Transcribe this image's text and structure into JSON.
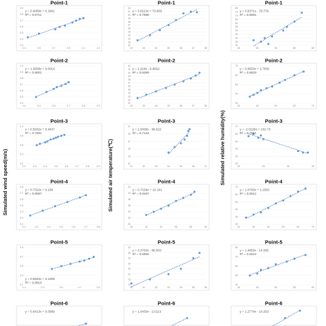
{
  "columns": [
    {
      "id": "wind",
      "ylabel": "Simulated wind speed(m/s)"
    },
    {
      "id": "temp",
      "ylabel": "Simulated air temperature(℃)"
    },
    {
      "id": "hum",
      "ylabel": "Simulated relative humidity(%)"
    }
  ],
  "colors": {
    "point": "#5b9bd5",
    "trendline": "#4472c4",
    "frame": "#d4d4d4",
    "grid": "#ececec"
  },
  "chart_data": [
    {
      "type": "scatter",
      "title": "Point-1",
      "col": 0,
      "row": 0,
      "equation": "y = 0.4089x + 0.2961",
      "r2": "R² = 0.8711",
      "eq_pos": "top-left",
      "xlim": [
        0.3,
        1.3
      ],
      "ylim": [
        0.3,
        0.9
      ],
      "xticks": [
        "0.3",
        "0.5",
        "0.7",
        "0.9",
        "1.1",
        "1.3"
      ],
      "yticks": [
        "0.3",
        "0.4",
        "0.5",
        "0.6",
        "0.7",
        "0.8",
        "0.9"
      ],
      "x": [
        0.35,
        0.5,
        0.72,
        0.78,
        0.85,
        0.95,
        1.0,
        1.05,
        1.1
      ],
      "y": [
        0.43,
        0.49,
        0.56,
        0.6,
        0.62,
        0.67,
        0.7,
        0.73,
        0.74
      ]
    },
    {
      "type": "scatter",
      "title": "Point-1",
      "col": 1,
      "row": 0,
      "equation": "y = 3.0113x + 73.083",
      "r2": "R² = 0.7688",
      "eq_pos": "top-left",
      "xlim": [
        32,
        38
      ],
      "ylim": [
        31,
        42
      ],
      "xticks": [
        "32",
        "33",
        "34",
        "35",
        "36",
        "37",
        "38"
      ],
      "yticks": [
        "31",
        "32",
        "33",
        "34",
        "35",
        "36",
        "37",
        "38",
        "39",
        "40",
        "41",
        "42"
      ],
      "x": [
        32.5,
        33.5,
        34.3,
        35.0,
        35.6,
        36.2,
        36.8,
        37.3
      ],
      "y": [
        32.5,
        34.0,
        35.5,
        37.0,
        38.5,
        40.5,
        41.0,
        40.8
      ]
    },
    {
      "type": "scatter",
      "title": "Point-1",
      "col": 2,
      "row": 0,
      "equation": "y = 3.6371x - 78.776",
      "r2": "R² = 0.6664",
      "eq_pos": "top-left",
      "xlim": [
        45,
        65
      ],
      "ylim": [
        30,
        80
      ],
      "xticks": [
        "45",
        "50",
        "55",
        "60",
        "65"
      ],
      "yticks": [
        "30",
        "35",
        "40",
        "45",
        "50",
        "55",
        "60",
        "65",
        "70",
        "75",
        "80"
      ],
      "x": [
        49,
        51,
        52,
        53,
        54,
        57,
        58,
        60,
        62
      ],
      "y": [
        37,
        35,
        40,
        32,
        42,
        50,
        55,
        62,
        74
      ]
    },
    {
      "type": "scatter",
      "title": "Point-2",
      "col": 0,
      "row": 1,
      "equation": "y = 1.0508x + 0.0014",
      "r2": "R² = 0.9001",
      "eq_pos": "top-left",
      "xlim": [
        0.4,
        0.9
      ],
      "ylim": [
        0.4,
        1.0
      ],
      "xticks": [
        "0.4",
        "0.5",
        "0.6",
        "0.7",
        "0.8",
        "0.9"
      ],
      "yticks": [
        "0.4",
        "0.5",
        "0.6",
        "0.7",
        "0.8",
        "0.9",
        "1.0"
      ],
      "x": [
        0.48,
        0.55,
        0.6,
        0.62,
        0.65,
        0.68,
        0.7
      ],
      "y": [
        0.5,
        0.58,
        0.63,
        0.66,
        0.68,
        0.71,
        0.74
      ]
    },
    {
      "type": "scatter",
      "title": "Point-2",
      "col": 1,
      "row": 1,
      "equation": "y = 1.218x - 6.9822",
      "r2": "R² = 0.9389",
      "eq_pos": "top-left",
      "xlim": [
        32,
        38
      ],
      "ylim": [
        31,
        42
      ],
      "xticks": [
        "32",
        "33",
        "34",
        "35",
        "36",
        "37",
        "38"
      ],
      "yticks": [
        "31",
        "32",
        "33",
        "34",
        "35",
        "36",
        "37",
        "38",
        "39",
        "40",
        "41",
        "42"
      ],
      "x": [
        32.5,
        33.2,
        34.0,
        34.8,
        35.5,
        36.2,
        36.8,
        37.2,
        37.5
      ],
      "y": [
        32.5,
        33.5,
        34.5,
        35.5,
        36.5,
        37.5,
        38.3,
        39.2,
        40.0
      ]
    },
    {
      "type": "scatter",
      "title": "Point-2",
      "col": 2,
      "row": 1,
      "equation": "y = 0.9553x + 2.7832",
      "r2": "R² = 0.8829",
      "eq_pos": "top-left",
      "xlim": [
        30,
        70
      ],
      "ylim": [
        30,
        70
      ],
      "xticks": [
        "30",
        "40",
        "50",
        "60",
        "70"
      ],
      "yticks": [
        "30",
        "40",
        "50",
        "60",
        "70"
      ],
      "x": [
        36,
        38,
        40,
        42,
        45,
        48,
        52,
        55,
        60,
        65
      ],
      "y": [
        37,
        39,
        41,
        44,
        46,
        48,
        52,
        55,
        60,
        64
      ]
    },
    {
      "type": "scatter",
      "title": "Point-3",
      "col": 0,
      "row": 2,
      "equation": "y = 0.5932x + 0.6407",
      "r2": "R² = 0.7691",
      "eq_pos": "top-left",
      "xlim": [
        0.2,
        0.9
      ],
      "ylim": [
        0.2,
        1.0
      ],
      "xticks": [
        "0.2",
        "0.3",
        "0.4",
        "0.5",
        "0.6",
        "0.7",
        "0.8",
        "0.9"
      ],
      "yticks": [
        "0.2",
        "0.4",
        "0.6",
        "0.8",
        "1.0"
      ],
      "x": [
        0.32,
        0.35,
        0.4,
        0.42,
        0.45,
        0.48,
        0.5,
        0.52,
        0.55,
        0.58
      ],
      "y": [
        0.6,
        0.63,
        0.66,
        0.68,
        0.72,
        0.74,
        0.76,
        0.78,
        0.8,
        0.82
      ]
    },
    {
      "type": "scatter",
      "title": "Point-3",
      "col": 1,
      "row": 2,
      "equation": "y = 2.0009x - 98.622",
      "r2": "R² = 0.7144",
      "eq_pos": "top-left",
      "xlim": [
        31,
        37
      ],
      "ylim": [
        31,
        41
      ],
      "xticks": [
        "31",
        "32",
        "33",
        "34",
        "35",
        "36",
        "37"
      ],
      "yticks": [
        "31",
        "33",
        "35",
        "37",
        "39",
        "41"
      ],
      "x": [
        34.0,
        34.5,
        35.0,
        35.3,
        35.5,
        35.6,
        35.7
      ],
      "y": [
        34.0,
        35.5,
        36.5,
        37.5,
        38.5,
        39.8,
        40.3
      ]
    },
    {
      "type": "scatter",
      "title": "Point-3",
      "col": 2,
      "row": 2,
      "equation": "y = -2.0228x + 102.73",
      "r2": "R² = 0.7591",
      "eq_pos": "top-left",
      "xlim": [
        20,
        35
      ],
      "ylim": [
        20,
        70
      ],
      "xticks": [
        "20",
        "25",
        "30",
        "35"
      ],
      "yticks": [
        "20",
        "30",
        "40",
        "50",
        "60",
        "70"
      ],
      "x": [
        22,
        23,
        24,
        24.5,
        25,
        32,
        33,
        34
      ],
      "y": [
        57,
        60,
        55,
        58,
        53,
        37,
        35,
        35
      ]
    },
    {
      "type": "scatter",
      "title": "Point-4",
      "col": 0,
      "row": 3,
      "equation": "y = 0.7322x + 0.156",
      "r2": "R² = 0.8597",
      "eq_pos": "top-left",
      "xlim": [
        0.2,
        0.8
      ],
      "ylim": [
        0.2,
        0.8
      ],
      "xticks": [
        "0.2",
        "0.3",
        "0.4",
        "0.5",
        "0.6",
        "0.7",
        "0.8"
      ],
      "yticks": [
        "0.2",
        "0.3",
        "0.4",
        "0.5",
        "0.6",
        "0.7",
        "0.8"
      ],
      "x": [
        0.25,
        0.35,
        0.45,
        0.55,
        0.65,
        0.7
      ],
      "y": [
        0.34,
        0.42,
        0.49,
        0.56,
        0.63,
        0.67
      ]
    },
    {
      "type": "scatter",
      "title": "Point-4",
      "col": 1,
      "row": 3,
      "equation": "y = 0.7229x + 10.181",
      "r2": "R² = 0.9187",
      "eq_pos": "top-left",
      "xlim": [
        30,
        40
      ],
      "ylim": [
        30,
        42
      ],
      "xticks": [
        "30",
        "32",
        "34",
        "36",
        "38",
        "40"
      ],
      "yticks": [
        "30",
        "32",
        "34",
        "36",
        "38",
        "40",
        "42"
      ],
      "x": [
        32,
        33,
        34,
        35,
        36,
        37,
        38,
        38.5
      ],
      "y": [
        33,
        34,
        35,
        36,
        37.5,
        38.5,
        39.5,
        40.5
      ]
    },
    {
      "type": "scatter",
      "title": "Point-4",
      "col": 2,
      "row": 3,
      "equation": "y = 1.0793x + 1.1553",
      "r2": "R² = 0.8912",
      "eq_pos": "top-left",
      "xlim": [
        20,
        70
      ],
      "ylim": [
        20,
        70
      ],
      "xticks": [
        "20",
        "30",
        "40",
        "50",
        "60",
        "70"
      ],
      "yticks": [
        "20",
        "30",
        "40",
        "50",
        "60",
        "70"
      ],
      "x": [
        25,
        30,
        35,
        40,
        45,
        50,
        55,
        60,
        65
      ],
      "y": [
        29,
        33,
        36,
        42,
        48,
        52,
        58,
        64,
        68
      ]
    },
    {
      "type": "scatter",
      "title": "Point-5",
      "col": 0,
      "row": 4,
      "equation": "y = 0.5594x + 0.2305",
      "r2": "R² = 0.8819",
      "eq_pos": "bottom-left",
      "xlim": [
        0.1,
        0.9
      ],
      "ylim": [
        0.1,
        0.9
      ],
      "xticks": [
        "0.1",
        "0.3",
        "0.5",
        "0.7",
        "0.9"
      ],
      "yticks": [
        "0.1",
        "0.3",
        "0.5",
        "0.7",
        "0.9"
      ],
      "x": [
        0.4,
        0.5,
        0.6,
        0.7,
        0.75,
        0.8,
        0.85
      ],
      "y": [
        0.44,
        0.5,
        0.55,
        0.6,
        0.62,
        0.66,
        0.7
      ]
    },
    {
      "type": "scatter",
      "title": "Point-5",
      "col": 1,
      "row": 4,
      "equation": "y = 3.3763x - 88.003",
      "r2": "R² = 0.5906",
      "eq_pos": "top-left",
      "xlim": [
        30,
        36
      ],
      "ylim": [
        14,
        42
      ],
      "xticks": [
        "30",
        "31",
        "32",
        "33",
        "34",
        "35",
        "36"
      ],
      "yticks": [
        "14",
        "18",
        "22",
        "26",
        "30",
        "34",
        "38",
        "42"
      ],
      "x": [
        30,
        31.5,
        33,
        34,
        35,
        35.5
      ],
      "y": [
        15,
        18,
        22,
        26,
        34,
        38
      ]
    },
    {
      "type": "scatter",
      "title": "Point-5",
      "col": 2,
      "row": 4,
      "equation": "y = 1.4883x - 14.065",
      "r2": "R² = 0.5515",
      "eq_pos": "top-left",
      "xlim": [
        40,
        60
      ],
      "ylim": [
        40,
        80
      ],
      "xticks": [
        "40",
        "45",
        "50",
        "55",
        "60"
      ],
      "yticks": [
        "40",
        "50",
        "60",
        "70",
        "80"
      ],
      "x": [
        43,
        45,
        46,
        48,
        50,
        53,
        55,
        58
      ],
      "y": [
        50,
        52,
        56,
        58,
        62,
        65,
        68,
        72
      ]
    },
    {
      "type": "scatter",
      "title": "Point-6",
      "col": 0,
      "row": 5,
      "equation": "y = 0.6413x + 0.0989",
      "r2": "",
      "eq_pos": "top-left",
      "xlim": [
        0.2,
        0.8
      ],
      "ylim": [
        0.2,
        0.8
      ],
      "xticks": [],
      "yticks": [],
      "x": [
        0.3,
        0.45,
        0.6,
        0.7
      ],
      "y": [
        0.3,
        0.4,
        0.5,
        0.56
      ]
    },
    {
      "type": "scatter",
      "title": "Point-6",
      "col": 1,
      "row": 5,
      "equation": "y = 1.0433x - 2.0113",
      "r2": "",
      "eq_pos": "top-left",
      "xlim": [
        30,
        40
      ],
      "ylim": [
        30,
        40
      ],
      "xticks": [],
      "yticks": [],
      "x": [
        32,
        35,
        37.5
      ],
      "y": [
        32,
        35,
        37.5
      ]
    },
    {
      "type": "scatter",
      "title": "Point-6",
      "col": 2,
      "row": 5,
      "equation": "y = 1.2774x - 10.263",
      "r2": "",
      "eq_pos": "top-left",
      "xlim": [
        30,
        70
      ],
      "ylim": [
        30,
        70
      ],
      "xticks": [],
      "yticks": [],
      "x": [
        45,
        55,
        63
      ],
      "y": [
        47,
        60,
        68
      ]
    }
  ]
}
